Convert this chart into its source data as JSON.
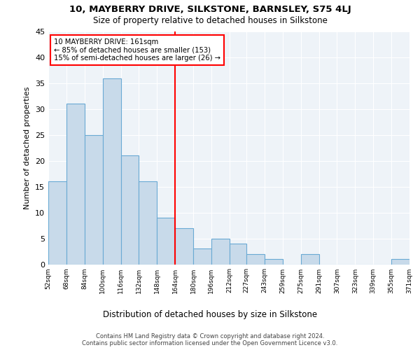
{
  "title": "10, MAYBERRY DRIVE, SILKSTONE, BARNSLEY, S75 4LJ",
  "subtitle": "Size of property relative to detached houses in Silkstone",
  "xlabel": "Distribution of detached houses by size in Silkstone",
  "ylabel": "Number of detached properties",
  "bins": [
    52,
    68,
    84,
    100,
    116,
    132,
    148,
    164,
    180,
    196,
    212,
    227,
    243,
    259,
    275,
    291,
    307,
    323,
    339,
    355,
    371
  ],
  "bin_labels": [
    "52sqm",
    "68sqm",
    "84sqm",
    "100sqm",
    "116sqm",
    "132sqm",
    "148sqm",
    "164sqm",
    "180sqm",
    "196sqm",
    "212sqm",
    "227sqm",
    "243sqm",
    "259sqm",
    "275sqm",
    "291sqm",
    "307sqm",
    "323sqm",
    "339sqm",
    "355sqm",
    "371sqm"
  ],
  "counts": [
    16,
    31,
    25,
    36,
    21,
    16,
    9,
    7,
    3,
    5,
    4,
    2,
    1,
    0,
    2,
    0,
    0,
    0,
    0,
    1
  ],
  "bar_color": "#c8daea",
  "bar_edge_color": "#6aaad4",
  "property_line_x": 164,
  "property_label": "10 MAYBERRY DRIVE: 161sqm",
  "annotation_line1": "← 85% of detached houses are smaller (153)",
  "annotation_line2": "15% of semi-detached houses are larger (26) →",
  "vline_color": "red",
  "ylim": [
    0,
    45
  ],
  "yticks": [
    0,
    5,
    10,
    15,
    20,
    25,
    30,
    35,
    40,
    45
  ],
  "footer_line1": "Contains HM Land Registry data © Crown copyright and database right 2024.",
  "footer_line2": "Contains public sector information licensed under the Open Government Licence v3.0.",
  "bg_color": "#ffffff",
  "plot_bg_color": "#eef3f8"
}
